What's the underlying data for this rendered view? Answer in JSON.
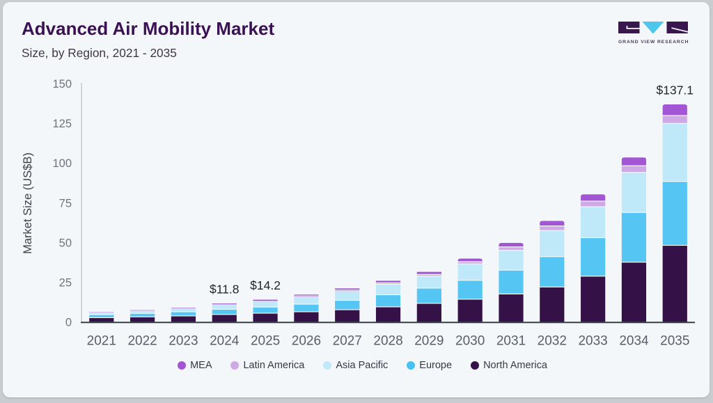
{
  "header": {
    "title": "Advanced Air Mobility Market",
    "subtitle": "Size, by Region, 2021 - 2035",
    "brand": "GRAND VIEW RESEARCH"
  },
  "brand_colors": {
    "logo_dark": "#39174e",
    "logo_blue": "#4ec7ed",
    "logo_text": "#463d58"
  },
  "chart_data": {
    "type": "bar",
    "stacked": true,
    "title": "Advanced Air Mobility Market",
    "subtitle": "Size, by Region, 2021 - 2035",
    "xlabel": "",
    "ylabel": "Market Size (US$B)",
    "ylim": [
      0,
      150
    ],
    "yticks": [
      0,
      25,
      50,
      75,
      100,
      125,
      150
    ],
    "grid": false,
    "legend_position": "bottom",
    "categories": [
      "2021",
      "2022",
      "2023",
      "2024",
      "2025",
      "2026",
      "2027",
      "2028",
      "2029",
      "2030",
      "2031",
      "2032",
      "2033",
      "2034",
      "2035"
    ],
    "series": [
      {
        "name": "North America",
        "color": "#341147",
        "values": [
          2.9,
          3.4,
          4.0,
          4.9,
          5.7,
          6.6,
          7.9,
          9.7,
          11.9,
          14.5,
          17.8,
          22.2,
          29.0,
          37.8,
          48.4
        ]
      },
      {
        "name": "Europe",
        "color": "#55c5f3",
        "values": [
          1.9,
          2.2,
          2.6,
          3.3,
          3.9,
          4.8,
          5.9,
          7.6,
          9.6,
          11.9,
          15.0,
          19.1,
          24.2,
          31.3,
          40.2
        ]
      },
      {
        "name": "Asia Pacific",
        "color": "#bfe8f8",
        "values": [
          1.3,
          1.6,
          2.0,
          2.9,
          3.6,
          4.6,
          5.8,
          6.6,
          7.5,
          10.3,
          12.5,
          16.4,
          19.5,
          25.2,
          36.5
        ]
      },
      {
        "name": "Latin America",
        "color": "#cfa9e6",
        "values": [
          0.15,
          0.2,
          0.25,
          0.3,
          0.4,
          0.6,
          0.7,
          0.9,
          1.1,
          1.4,
          2.1,
          2.9,
          3.5,
          4.2,
          5.0
        ]
      },
      {
        "name": "MEA",
        "color": "#a356d4",
        "values": [
          0.15,
          0.2,
          0.25,
          0.4,
          0.6,
          0.8,
          1.0,
          1.3,
          1.6,
          2.0,
          2.5,
          3.2,
          4.3,
          5.2,
          7.0
        ]
      }
    ],
    "annotations": [
      {
        "category": "2024",
        "text": "$11.8"
      },
      {
        "category": "2025",
        "text": "$14.2"
      },
      {
        "category": "2035",
        "text": "$137.1"
      }
    ]
  },
  "legend": {
    "items": [
      {
        "label": "MEA",
        "color": "#a356d4",
        "icon": "mea-swatch-icon"
      },
      {
        "label": "Latin America",
        "color": "#cfa9e6",
        "icon": "latin-america-swatch-icon"
      },
      {
        "label": "Asia Pacific",
        "color": "#bfe8f8",
        "icon": "asia-pacific-swatch-icon"
      },
      {
        "label": "Europe",
        "color": "#45c2f1",
        "icon": "europe-swatch-icon"
      },
      {
        "label": "North America",
        "color": "#341147",
        "icon": "north-america-swatch-icon"
      }
    ]
  }
}
